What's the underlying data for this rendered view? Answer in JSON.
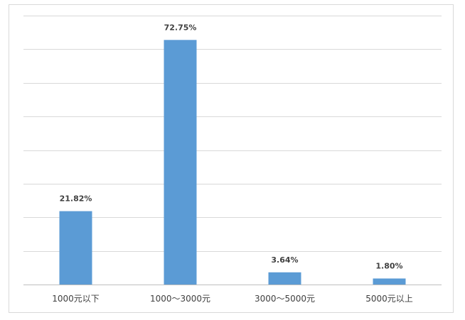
{
  "chart_data": {
    "type": "bar",
    "title": "",
    "xlabel": "",
    "ylabel": "",
    "ylim": [
      0,
      80
    ],
    "gridlines": true,
    "legend": "none",
    "categories": [
      "1000元以下",
      "1000～3000元",
      "3000～5000元",
      "5000元以上"
    ],
    "values": [
      21.82,
      72.75,
      3.64,
      1.8
    ],
    "data_labels": [
      "21.82%",
      "72.75%",
      "3.64%",
      "1.80%"
    ],
    "bar_color": "#5b9bd5",
    "grid_color": "#d9d9d9",
    "text_color": "#404040"
  }
}
